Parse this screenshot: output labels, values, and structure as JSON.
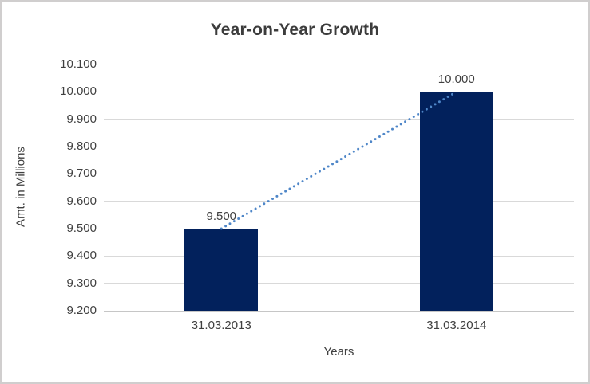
{
  "title": "Year-on-Year Growth",
  "chart_data": {
    "type": "bar",
    "title": "Year-on-Year Growth",
    "categories": [
      "31.03.2013",
      "31.03.2014"
    ],
    "values": [
      9.5,
      10.0
    ],
    "data_labels": [
      "9.500",
      "10.000"
    ],
    "xlabel": "Years",
    "ylabel": "Amt. in Millions",
    "ylim": [
      9.2,
      10.1
    ],
    "ytick_labels": [
      "10.100",
      "10.000",
      "9.900",
      "9.800",
      "9.700",
      "9.600",
      "9.500",
      "9.400",
      "9.300",
      "9.200"
    ],
    "grid": true,
    "legend": false,
    "trendline": {
      "style": "dotted",
      "connects": "bar tops"
    }
  },
  "colors": {
    "bar": "#02215C",
    "trendline": "#4E86C8",
    "gridline": "#D9D9D9",
    "axis_line": "#C6C6C6",
    "text": "#404040",
    "title_text": "#3C3C3C",
    "border": "#D0CECE",
    "background": "#FFFFFF"
  }
}
